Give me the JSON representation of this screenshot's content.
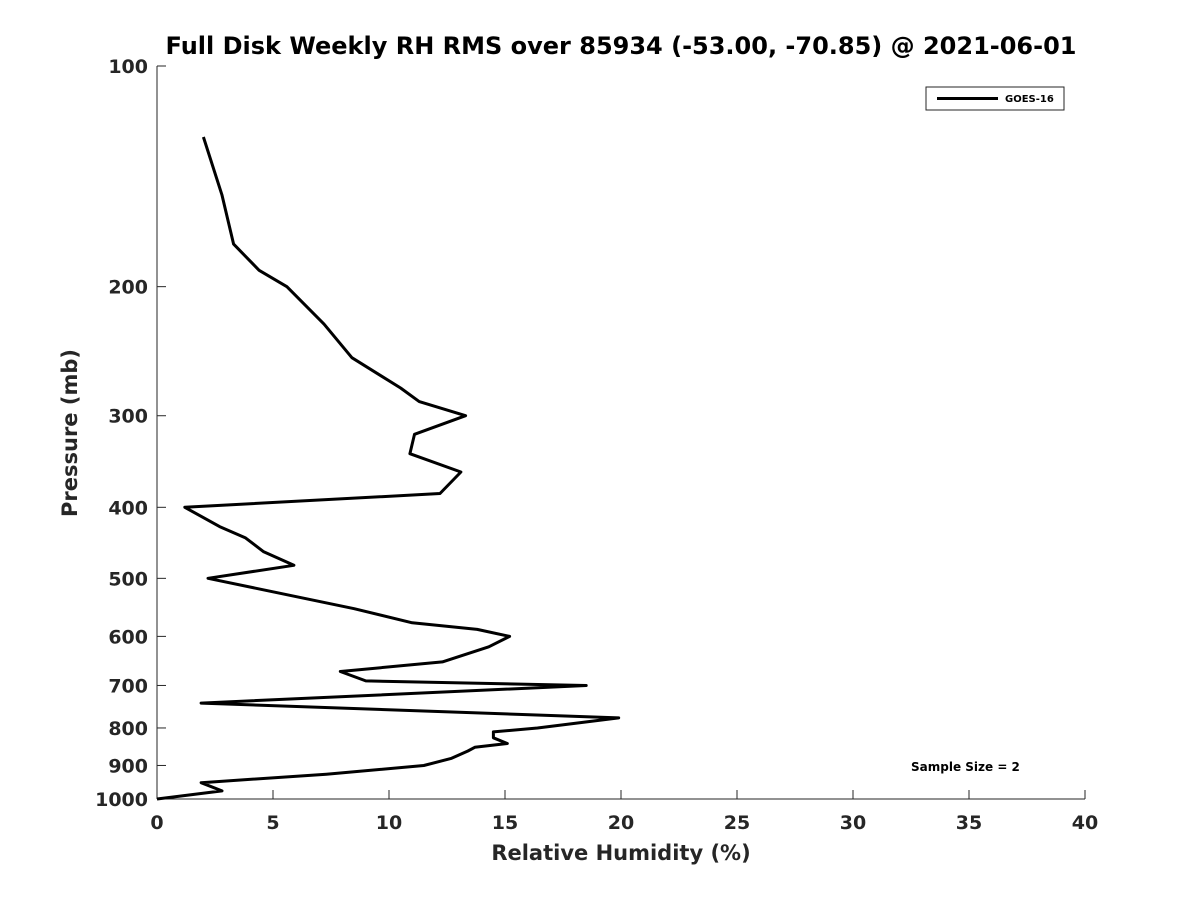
{
  "chart_data": {
    "type": "line",
    "title": "Full Disk Weekly RH RMS over 85934 (-53.00, -70.85) @ 2021-06-01",
    "xlabel": "Relative Humidity (%)",
    "ylabel": "Pressure (mb)",
    "xlim": [
      0,
      40
    ],
    "ylim": [
      1000,
      100
    ],
    "yscale": "log",
    "xticks": [
      0,
      5,
      10,
      15,
      20,
      25,
      30,
      35,
      40
    ],
    "yticks": [
      100,
      200,
      300,
      400,
      500,
      600,
      700,
      800,
      900,
      1000
    ],
    "grid": false,
    "legend_position": "top-right",
    "annotation": "Sample Size = 2",
    "series": [
      {
        "name": "GOES-16",
        "color": "#000000",
        "x": [
          2.0,
          2.8,
          3.3,
          4.4,
          5.6,
          7.2,
          8.4,
          10.5,
          11.3,
          13.3,
          11.1,
          10.9,
          13.1,
          12.2,
          1.2,
          2.7,
          3.8,
          4.6,
          5.9,
          2.2,
          8.5,
          11.0,
          13.8,
          15.2,
          14.3,
          12.3,
          7.9,
          9.0,
          18.5,
          1.9,
          19.9,
          16.4,
          14.5,
          14.5,
          15.1,
          13.7,
          13.4,
          12.7,
          11.5,
          7.3,
          1.9,
          2.8,
          0.0
        ],
        "y": [
          125,
          150,
          175,
          190,
          200,
          225,
          250,
          275,
          287,
          300,
          318,
          338,
          358,
          383,
          400,
          425,
          440,
          460,
          480,
          500,
          550,
          575,
          587,
          600,
          620,
          650,
          670,
          690,
          700,
          740,
          775,
          800,
          810,
          825,
          840,
          850,
          860,
          880,
          900,
          925,
          950,
          975,
          1000
        ]
      }
    ]
  }
}
